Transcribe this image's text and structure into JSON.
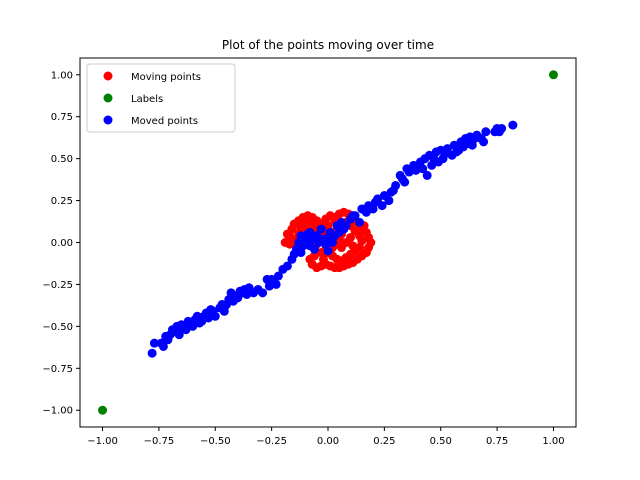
{
  "chart_data": {
    "type": "scatter",
    "title": "Plot of the points moving over time",
    "xlabel": "",
    "ylabel": "",
    "xlim": [
      -1.1,
      1.1
    ],
    "ylim": [
      -1.1,
      1.1
    ],
    "x_ticks": [
      -1.0,
      -0.75,
      -0.5,
      -0.25,
      0.0,
      0.25,
      0.5,
      0.75,
      1.0
    ],
    "x_tick_labels": [
      "−1.00",
      "−0.75",
      "−0.50",
      "−0.25",
      "0.00",
      "0.25",
      "0.50",
      "0.75",
      "1.00"
    ],
    "y_ticks": [
      -1.0,
      -0.75,
      -0.5,
      -0.25,
      0.0,
      0.25,
      0.5,
      0.75,
      1.0
    ],
    "y_tick_labels": [
      "−1.00",
      "−0.75",
      "−0.50",
      "−0.25",
      "0.00",
      "0.25",
      "0.50",
      "0.75",
      "1.00"
    ],
    "grid": false,
    "legend_position": "top-left",
    "series": [
      {
        "name": "Moving points",
        "color": "#ff0000",
        "points": [
          [
            -0.19,
            0.0
          ],
          [
            -0.17,
            0.04
          ],
          [
            -0.16,
            0.08
          ],
          [
            -0.15,
            0.11
          ],
          [
            -0.13,
            0.13
          ],
          [
            -0.11,
            0.15
          ],
          [
            -0.09,
            0.16
          ],
          [
            -0.07,
            0.15
          ],
          [
            -0.05,
            0.13
          ],
          [
            -0.03,
            0.11
          ],
          [
            -0.02,
            0.08
          ],
          [
            -0.02,
            0.04
          ],
          [
            -0.03,
            0.01
          ],
          [
            -0.05,
            -0.01
          ],
          [
            -0.08,
            0.0
          ],
          [
            -0.1,
            0.02
          ],
          [
            -0.13,
            0.05
          ],
          [
            -0.14,
            0.02
          ],
          [
            -0.12,
            0.08
          ],
          [
            -0.1,
            0.1
          ],
          [
            -0.08,
            0.12
          ],
          [
            -0.06,
            0.09
          ],
          [
            -0.09,
            0.06
          ],
          [
            -0.11,
            0.04
          ],
          [
            -0.04,
            0.06
          ],
          [
            -0.06,
            0.03
          ],
          [
            -0.15,
            0.0
          ],
          [
            -0.17,
            -0.01
          ],
          [
            -0.01,
            0.14
          ],
          [
            0.01,
            0.16
          ],
          [
            0.03,
            0.15
          ],
          [
            0.05,
            0.17
          ],
          [
            0.07,
            0.18
          ],
          [
            0.09,
            0.17
          ],
          [
            0.11,
            0.15
          ],
          [
            0.13,
            0.12
          ],
          [
            0.15,
            0.09
          ],
          [
            0.17,
            0.06
          ],
          [
            0.18,
            0.03
          ],
          [
            0.19,
            0.0
          ],
          [
            0.18,
            -0.03
          ],
          [
            0.17,
            -0.06
          ],
          [
            0.15,
            -0.08
          ],
          [
            0.13,
            -0.1
          ],
          [
            0.11,
            -0.12
          ],
          [
            0.09,
            -0.13
          ],
          [
            0.07,
            -0.14
          ],
          [
            0.05,
            -0.15
          ],
          [
            0.03,
            -0.15
          ],
          [
            0.01,
            -0.14
          ],
          [
            -0.01,
            -0.13
          ],
          [
            -0.03,
            -0.14
          ],
          [
            -0.05,
            -0.15
          ],
          [
            -0.07,
            -0.13
          ],
          [
            -0.08,
            -0.1
          ],
          [
            -0.06,
            -0.08
          ],
          [
            -0.03,
            -0.06
          ],
          [
            -0.01,
            -0.04
          ],
          [
            0.02,
            -0.03
          ],
          [
            0.04,
            -0.01
          ],
          [
            0.05,
            0.02
          ],
          [
            0.06,
            0.05
          ],
          [
            0.07,
            0.08
          ],
          [
            0.05,
            0.11
          ],
          [
            0.03,
            0.13
          ],
          [
            0.08,
            0.12
          ],
          [
            0.1,
            0.1
          ],
          [
            0.12,
            0.07
          ],
          [
            0.14,
            0.04
          ],
          [
            0.15,
            0.01
          ],
          [
            0.14,
            -0.03
          ],
          [
            0.12,
            -0.05
          ],
          [
            0.1,
            -0.07
          ],
          [
            0.08,
            -0.09
          ],
          [
            0.06,
            -0.11
          ],
          [
            0.04,
            -0.1
          ],
          [
            0.02,
            -0.08
          ],
          [
            0.0,
            -0.06
          ],
          [
            0.1,
            0.03
          ],
          [
            0.08,
            0.0
          ],
          [
            0.06,
            -0.03
          ],
          [
            0.11,
            -0.02
          ],
          [
            0.16,
            0.1
          ],
          [
            0.12,
            0.13
          ],
          [
            -0.12,
            0.12
          ],
          [
            -0.07,
            0.07
          ],
          [
            -0.18,
            0.05
          ],
          [
            0.0,
            0.1
          ],
          [
            0.02,
            0.06
          ],
          [
            -0.02,
            -0.1
          ]
        ]
      },
      {
        "name": "Labels",
        "color": "#008000",
        "points": [
          [
            -1.0,
            -1.0
          ],
          [
            1.0,
            1.0
          ]
        ]
      },
      {
        "name": "Moved points",
        "color": "#0000ff",
        "points": [
          [
            -0.78,
            -0.66
          ],
          [
            -0.77,
            -0.6
          ],
          [
            -0.74,
            -0.6
          ],
          [
            -0.73,
            -0.62
          ],
          [
            -0.72,
            -0.56
          ],
          [
            -0.71,
            -0.58
          ],
          [
            -0.7,
            -0.55
          ],
          [
            -0.69,
            -0.52
          ],
          [
            -0.68,
            -0.53
          ],
          [
            -0.67,
            -0.5
          ],
          [
            -0.66,
            -0.55
          ],
          [
            -0.65,
            -0.49
          ],
          [
            -0.64,
            -0.5
          ],
          [
            -0.63,
            -0.52
          ],
          [
            -0.62,
            -0.47
          ],
          [
            -0.61,
            -0.48
          ],
          [
            -0.6,
            -0.5
          ],
          [
            -0.59,
            -0.46
          ],
          [
            -0.58,
            -0.44
          ],
          [
            -0.56,
            -0.47
          ],
          [
            -0.55,
            -0.44
          ],
          [
            -0.54,
            -0.42
          ],
          [
            -0.52,
            -0.4
          ],
          [
            -0.51,
            -0.41
          ],
          [
            -0.5,
            -0.44
          ],
          [
            -0.48,
            -0.39
          ],
          [
            -0.47,
            -0.37
          ],
          [
            -0.46,
            -0.41
          ],
          [
            -0.45,
            -0.37
          ],
          [
            -0.44,
            -0.34
          ],
          [
            -0.43,
            -0.3
          ],
          [
            -0.42,
            -0.35
          ],
          [
            -0.41,
            -0.32
          ],
          [
            -0.4,
            -0.33
          ],
          [
            -0.38,
            -0.3
          ],
          [
            -0.37,
            -0.28
          ],
          [
            -0.36,
            -0.31
          ],
          [
            -0.35,
            -0.27
          ],
          [
            -0.33,
            -0.3
          ],
          [
            -0.31,
            -0.28
          ],
          [
            -0.29,
            -0.3
          ],
          [
            -0.27,
            -0.22
          ],
          [
            -0.26,
            -0.26
          ],
          [
            -0.25,
            -0.22
          ],
          [
            -0.23,
            -0.25
          ],
          [
            -0.22,
            -0.2
          ],
          [
            -0.2,
            -0.16
          ],
          [
            -0.18,
            -0.14
          ],
          [
            -0.16,
            -0.1
          ],
          [
            -0.15,
            -0.07
          ],
          [
            -0.14,
            -0.04
          ],
          [
            -0.13,
            0.0
          ],
          [
            -0.12,
            -0.06
          ],
          [
            -0.11,
            -0.02
          ],
          [
            -0.1,
            0.02
          ],
          [
            -0.09,
            0.05
          ],
          [
            -0.08,
            -0.02
          ],
          [
            -0.07,
            0.02
          ],
          [
            -0.06,
            -0.04
          ],
          [
            -0.05,
            0.04
          ],
          [
            -0.04,
            0.0
          ],
          [
            -0.03,
            0.08
          ],
          [
            -0.02,
            0.02
          ],
          [
            -0.01,
            -0.01
          ],
          [
            0.0,
            0.03
          ],
          [
            0.01,
            0.06
          ],
          [
            0.02,
            0.0
          ],
          [
            0.03,
            0.04
          ],
          [
            0.04,
            0.1
          ],
          [
            0.05,
            0.06
          ],
          [
            0.06,
            0.12
          ],
          [
            0.08,
            0.1
          ],
          [
            0.1,
            0.14
          ],
          [
            0.12,
            0.16
          ],
          [
            0.14,
            0.12
          ],
          [
            0.15,
            0.2
          ],
          [
            0.17,
            0.18
          ],
          [
            0.18,
            0.22
          ],
          [
            0.2,
            0.2
          ],
          [
            0.22,
            0.26
          ],
          [
            0.24,
            0.22
          ],
          [
            0.25,
            0.28
          ],
          [
            0.27,
            0.25
          ],
          [
            0.28,
            0.3
          ],
          [
            0.3,
            0.34
          ],
          [
            0.32,
            0.4
          ],
          [
            0.33,
            0.38
          ],
          [
            0.35,
            0.44
          ],
          [
            0.36,
            0.42
          ],
          [
            0.38,
            0.46
          ],
          [
            0.39,
            0.43
          ],
          [
            0.41,
            0.48
          ],
          [
            0.42,
            0.44
          ],
          [
            0.43,
            0.5
          ],
          [
            0.44,
            0.4
          ],
          [
            0.45,
            0.52
          ],
          [
            0.46,
            0.46
          ],
          [
            0.47,
            0.5
          ],
          [
            0.48,
            0.54
          ],
          [
            0.49,
            0.48
          ],
          [
            0.5,
            0.55
          ],
          [
            0.51,
            0.5
          ],
          [
            0.52,
            0.53
          ],
          [
            0.53,
            0.56
          ],
          [
            0.55,
            0.52
          ],
          [
            0.56,
            0.58
          ],
          [
            0.58,
            0.55
          ],
          [
            0.59,
            0.6
          ],
          [
            0.6,
            0.57
          ],
          [
            0.61,
            0.62
          ],
          [
            0.62,
            0.59
          ],
          [
            0.63,
            0.63
          ],
          [
            0.64,
            0.58
          ],
          [
            0.66,
            0.64
          ],
          [
            0.68,
            0.62
          ],
          [
            0.69,
            0.6
          ],
          [
            0.7,
            0.66
          ],
          [
            0.74,
            0.66
          ],
          [
            0.75,
            0.68
          ],
          [
            0.76,
            0.66
          ],
          [
            0.77,
            0.68
          ],
          [
            0.82,
            0.7
          ],
          [
            -0.46,
            -0.39
          ],
          [
            -0.53,
            -0.45
          ],
          [
            -0.66,
            -0.53
          ],
          [
            -0.57,
            -0.48
          ],
          [
            -0.39,
            -0.29
          ],
          [
            0.29,
            0.31
          ],
          [
            0.4,
            0.45
          ],
          [
            0.57,
            0.54
          ],
          [
            0.65,
            0.62
          ],
          [
            0.34,
            0.36
          ],
          [
            -0.08,
            0.06
          ],
          [
            0.0,
            -0.05
          ],
          [
            0.07,
            0.08
          ],
          [
            -0.12,
            0.04
          ],
          [
            0.11,
            0.16
          ],
          [
            0.21,
            0.24
          ]
        ]
      }
    ]
  }
}
